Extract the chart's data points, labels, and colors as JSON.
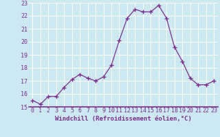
{
  "x": [
    0,
    1,
    2,
    3,
    4,
    5,
    6,
    7,
    8,
    9,
    10,
    11,
    12,
    13,
    14,
    15,
    16,
    17,
    18,
    19,
    20,
    21,
    22,
    23
  ],
  "y": [
    15.5,
    15.2,
    15.8,
    15.8,
    16.5,
    17.1,
    17.5,
    17.2,
    17.0,
    17.3,
    18.2,
    20.1,
    21.8,
    22.5,
    22.3,
    22.3,
    22.8,
    21.8,
    19.6,
    18.5,
    17.2,
    16.7,
    16.7,
    17.0
  ],
  "line_color": "#7b2d8b",
  "marker": "+",
  "marker_size": 4,
  "bg_color": "#cce8f0",
  "grid_color": "#ffffff",
  "xlabel": "Windchill (Refroidissement éolien,°C)",
  "tick_color": "#7b2d8b",
  "ylim": [
    15,
    23
  ],
  "xlim": [
    -0.5,
    23.5
  ],
  "yticks": [
    15,
    16,
    17,
    18,
    19,
    20,
    21,
    22,
    23
  ],
  "xticks": [
    0,
    1,
    2,
    3,
    4,
    5,
    6,
    7,
    8,
    9,
    10,
    11,
    12,
    13,
    14,
    15,
    16,
    17,
    18,
    19,
    20,
    21,
    22,
    23
  ],
  "tick_fontsize": 6,
  "xlabel_fontsize": 6.5
}
